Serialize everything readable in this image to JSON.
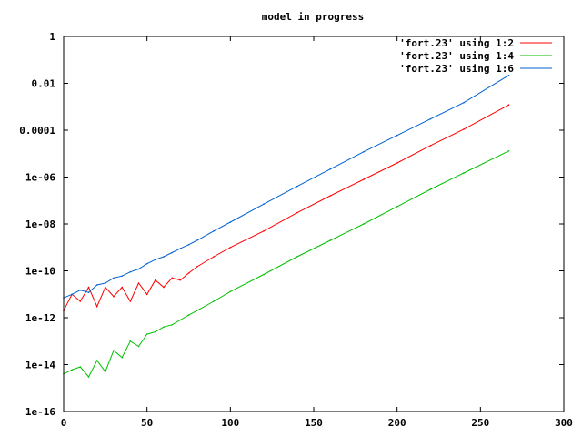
{
  "chart_data": {
    "type": "line",
    "title": "model in progress",
    "xlabel": "",
    "ylabel": "",
    "xlim": [
      0,
      300
    ],
    "ylim": [
      1e-16,
      1
    ],
    "y_scale": "log",
    "grid": false,
    "legend_position": "top-right",
    "x_ticks": [
      0,
      50,
      100,
      150,
      200,
      250,
      300
    ],
    "x_tick_labels": [
      "0",
      "50",
      "100",
      "150",
      "200",
      "250",
      "300"
    ],
    "y_ticks": [
      1e-16,
      1e-14,
      1e-12,
      1e-10,
      1e-08,
      1e-06,
      0.0001,
      0.01,
      1
    ],
    "y_tick_labels": [
      "1e-16",
      "1e-14",
      "1e-12",
      "1e-10",
      "1e-08",
      "1e-06",
      "0.0001",
      "0.01",
      "1"
    ],
    "series": [
      {
        "name": "'fort.23' using 1:2",
        "color": "#ff0000",
        "x": [
          0,
          5,
          10,
          15,
          20,
          25,
          30,
          35,
          40,
          45,
          50,
          55,
          60,
          65,
          70,
          75,
          80,
          90,
          100,
          120,
          140,
          160,
          180,
          200,
          220,
          240,
          267
        ],
        "y": [
          2e-12,
          1e-11,
          5e-12,
          2e-11,
          3e-12,
          2e-11,
          8e-12,
          2e-11,
          5e-12,
          3e-11,
          1e-11,
          4e-11,
          2e-11,
          5e-11,
          4e-11,
          8e-11,
          1.5e-10,
          4e-10,
          1e-09,
          5e-09,
          3e-08,
          1.6e-07,
          8e-07,
          4e-06,
          2.2e-05,
          0.00011,
          0.0012
        ]
      },
      {
        "name": "'fort.23' using 1:4",
        "color": "#00c000",
        "x": [
          0,
          5,
          10,
          15,
          20,
          25,
          30,
          35,
          40,
          45,
          50,
          55,
          60,
          65,
          70,
          75,
          80,
          90,
          100,
          120,
          140,
          160,
          180,
          200,
          220,
          240,
          267
        ],
        "y": [
          4e-15,
          6e-15,
          8e-15,
          3e-15,
          1.5e-14,
          5e-15,
          4e-14,
          2e-14,
          1e-13,
          6e-14,
          2e-13,
          2.5e-13,
          4e-13,
          5e-13,
          8e-13,
          1.3e-12,
          2e-12,
          5e-12,
          1.3e-11,
          7e-11,
          4e-10,
          2e-09,
          1e-08,
          5.5e-08,
          3e-07,
          1.5e-06,
          1.3e-05
        ]
      },
      {
        "name": "'fort.23' using 1:6",
        "color": "#0060d0",
        "x": [
          0,
          5,
          10,
          15,
          20,
          25,
          30,
          35,
          40,
          45,
          50,
          55,
          60,
          65,
          70,
          75,
          80,
          90,
          100,
          120,
          140,
          160,
          180,
          200,
          220,
          240,
          267
        ],
        "y": [
          7e-12,
          1e-11,
          1.5e-11,
          1.2e-11,
          2.5e-11,
          3e-11,
          5e-11,
          6e-11,
          9e-11,
          1.2e-10,
          2e-10,
          3e-10,
          4e-10,
          6e-10,
          9e-10,
          1.3e-09,
          2e-09,
          5e-09,
          1.2e-08,
          7e-08,
          4e-07,
          2.2e-06,
          1.2e-05,
          6e-05,
          0.0003,
          0.0015,
          0.022
        ]
      }
    ]
  }
}
